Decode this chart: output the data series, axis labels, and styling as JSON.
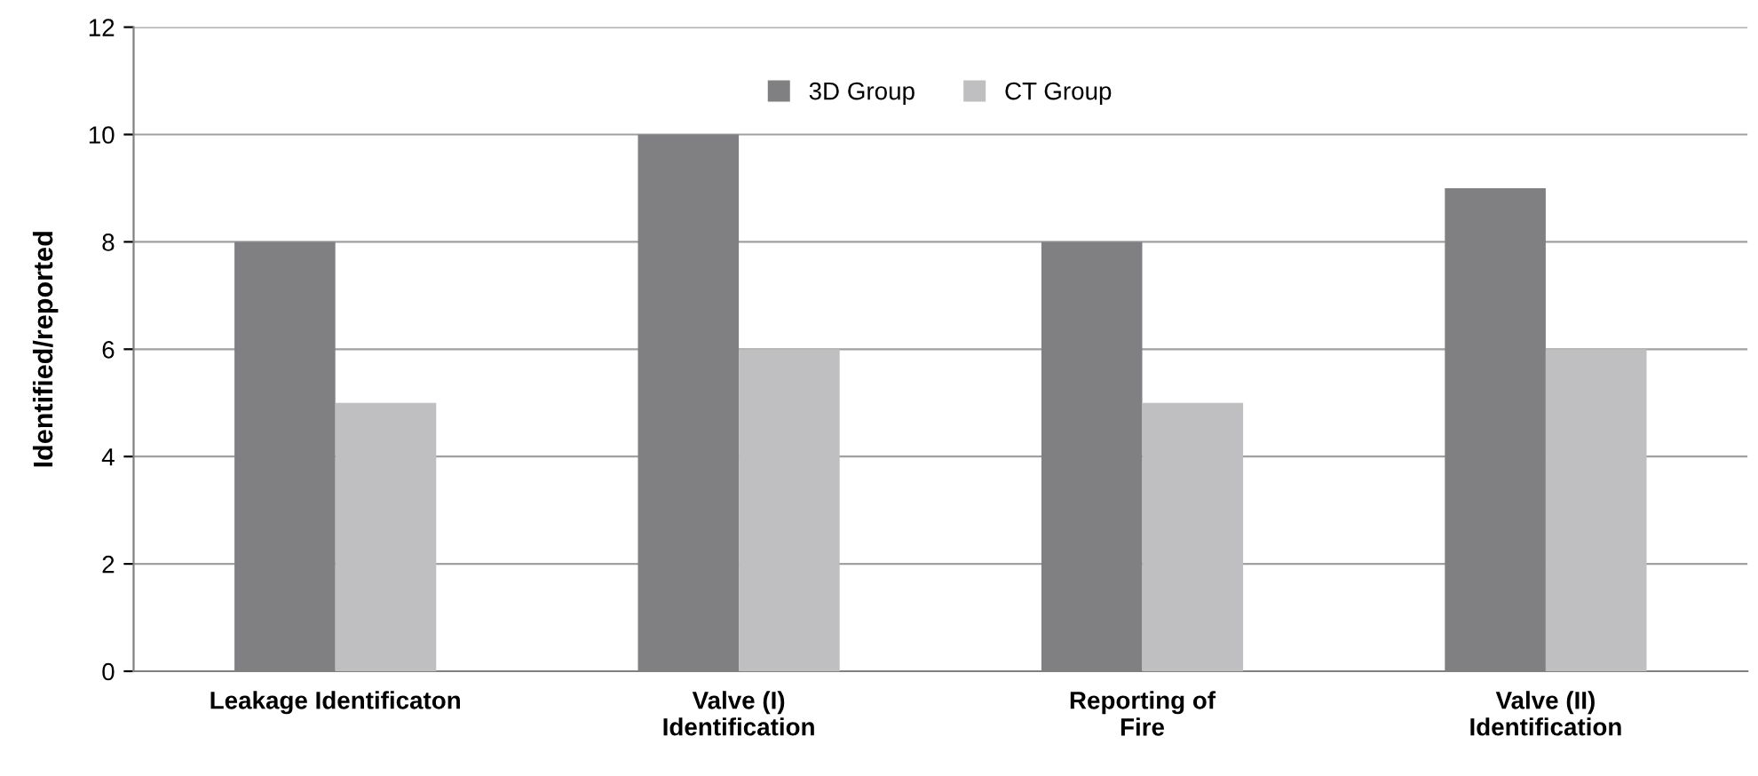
{
  "chart_data": {
    "type": "bar",
    "ylabel": "Identified/reported",
    "categories": [
      "Leakage Identificaton",
      "Valve (I)\nIdentification",
      "Reporting of\nFire",
      "Valve (II)\nIdentification"
    ],
    "series": [
      {
        "name": "3D Group",
        "color": "#808083",
        "values": [
          8,
          10,
          8,
          9
        ]
      },
      {
        "name": "CT Group",
        "color": "#bfbfc1",
        "values": [
          5,
          6,
          5,
          6
        ]
      }
    ],
    "ylim": [
      0,
      12
    ],
    "yticks": [
      0,
      2,
      4,
      6,
      8,
      10,
      12
    ],
    "grid": "y",
    "legend": "top"
  }
}
